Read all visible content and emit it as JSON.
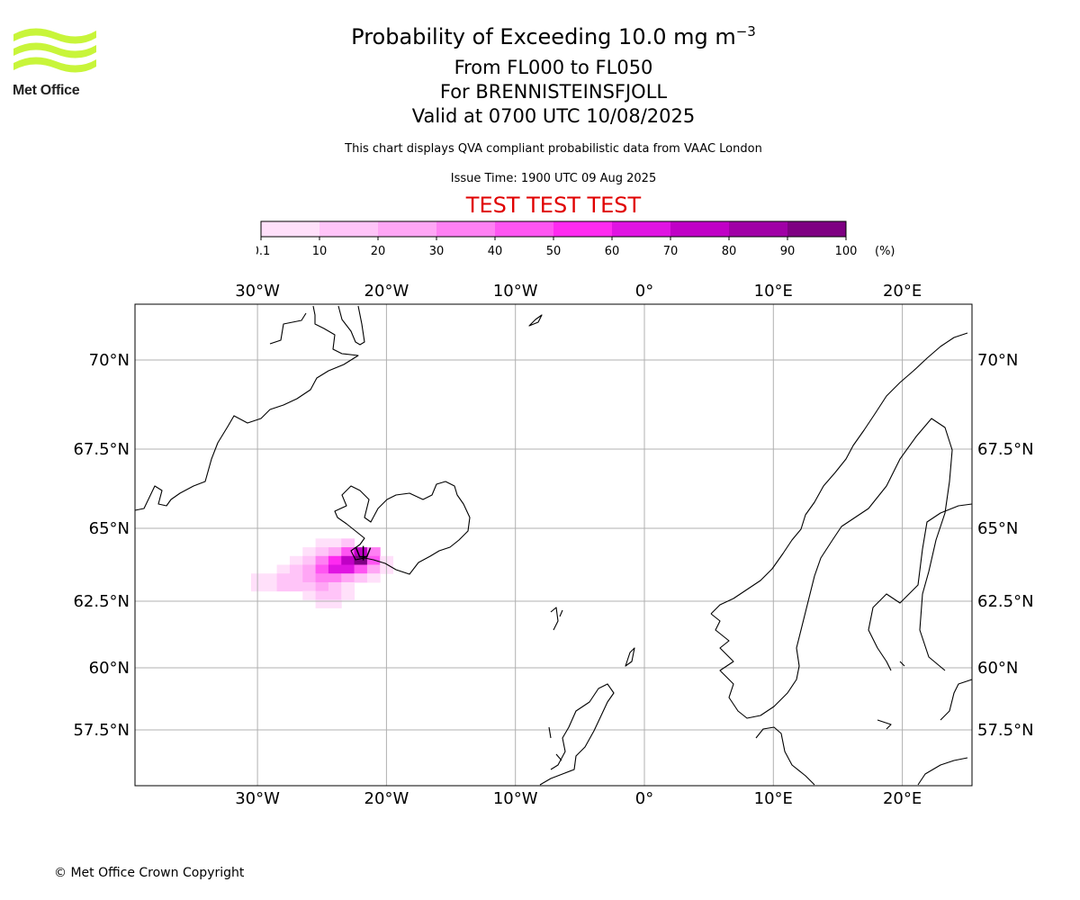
{
  "header": {
    "title_main": "Probability of Exceeding 10.0 mg m",
    "title_exponent": "−3",
    "levels": "From FL000 to FL050",
    "volcano": "For BRENNISTEINSFJOLL",
    "valid": "Valid at 0700 UTC 10/08/2025",
    "source_note": "This chart displays QVA compliant probabilistic data from VAAC London",
    "issue_time": "Issue Time: 1900 UTC 09 Aug 2025",
    "test_banner": "TEST TEST TEST"
  },
  "logo": {
    "text": "Met Office",
    "color": "#c8f53a"
  },
  "colorbar": {
    "unit": "(%)",
    "ticks": [
      "0.1",
      "10",
      "20",
      "30",
      "40",
      "50",
      "60",
      "70",
      "80",
      "90",
      "100"
    ],
    "colors": [
      "#ffe0fa",
      "#ffc4f8",
      "#ffa6f5",
      "#ff80f3",
      "#ff55f2",
      "#ff2af0",
      "#e014e2",
      "#c000c6",
      "#a000a6",
      "#7e0082"
    ]
  },
  "map": {
    "lon_labels": [
      "30°W",
      "20°W",
      "10°W",
      "0°",
      "10°E",
      "20°E"
    ],
    "lon_values": [
      -30,
      -20,
      -10,
      0,
      10,
      20
    ],
    "lat_labels": [
      "70°N",
      "67.5°N",
      "65°N",
      "62.5°N",
      "60°N",
      "57.5°N"
    ],
    "lat_values": [
      70,
      67.5,
      65,
      62.5,
      60,
      57.5
    ],
    "extent": {
      "lon_min": -39.6,
      "lon_max": 25.4,
      "lat_min": 55.6,
      "lat_max": 72.2
    },
    "volcano_location": {
      "lon": -21.8,
      "lat": 63.9
    },
    "probability_cells": [
      {
        "lon": -25,
        "lat": 64.5,
        "p": 5
      },
      {
        "lon": -24,
        "lat": 64.5,
        "p": 8
      },
      {
        "lon": -23,
        "lat": 64.5,
        "p": 12
      },
      {
        "lon": -26,
        "lat": 64.2,
        "p": 6
      },
      {
        "lon": -25,
        "lat": 64.2,
        "p": 15
      },
      {
        "lon": -24,
        "lat": 64.2,
        "p": 25
      },
      {
        "lon": -23,
        "lat": 64.2,
        "p": 45
      },
      {
        "lon": -22,
        "lat": 64.2,
        "p": 75
      },
      {
        "lon": -21,
        "lat": 64.2,
        "p": 35
      },
      {
        "lon": -27,
        "lat": 63.9,
        "p": 5
      },
      {
        "lon": -26,
        "lat": 63.9,
        "p": 18
      },
      {
        "lon": -25,
        "lat": 63.9,
        "p": 35
      },
      {
        "lon": -24,
        "lat": 63.9,
        "p": 55
      },
      {
        "lon": -23,
        "lat": 63.9,
        "p": 75
      },
      {
        "lon": -22,
        "lat": 63.9,
        "p": 95
      },
      {
        "lon": -21,
        "lat": 63.9,
        "p": 40
      },
      {
        "lon": -20,
        "lat": 63.9,
        "p": 8
      },
      {
        "lon": -28,
        "lat": 63.6,
        "p": 8
      },
      {
        "lon": -27,
        "lat": 63.6,
        "p": 12
      },
      {
        "lon": -26,
        "lat": 63.6,
        "p": 22
      },
      {
        "lon": -25,
        "lat": 63.6,
        "p": 45
      },
      {
        "lon": -24,
        "lat": 63.6,
        "p": 65
      },
      {
        "lon": -23,
        "lat": 63.6,
        "p": 60
      },
      {
        "lon": -22,
        "lat": 63.6,
        "p": 48
      },
      {
        "lon": -21,
        "lat": 63.6,
        "p": 20
      },
      {
        "lon": -20,
        "lat": 63.6,
        "p": 6
      },
      {
        "lon": -30,
        "lat": 63.3,
        "p": 4
      },
      {
        "lon": -29,
        "lat": 63.3,
        "p": 8
      },
      {
        "lon": -28,
        "lat": 63.3,
        "p": 15
      },
      {
        "lon": -27,
        "lat": 63.3,
        "p": 18
      },
      {
        "lon": -26,
        "lat": 63.3,
        "p": 25
      },
      {
        "lon": -25,
        "lat": 63.3,
        "p": 30
      },
      {
        "lon": -24,
        "lat": 63.3,
        "p": 32
      },
      {
        "lon": -23,
        "lat": 63.3,
        "p": 20
      },
      {
        "lon": -22,
        "lat": 63.3,
        "p": 10
      },
      {
        "lon": -21,
        "lat": 63.3,
        "p": 5
      },
      {
        "lon": -30,
        "lat": 63.0,
        "p": 4
      },
      {
        "lon": -29,
        "lat": 63.0,
        "p": 6
      },
      {
        "lon": -28,
        "lat": 63.0,
        "p": 10
      },
      {
        "lon": -27,
        "lat": 63.0,
        "p": 12
      },
      {
        "lon": -26,
        "lat": 63.0,
        "p": 18
      },
      {
        "lon": -25,
        "lat": 63.0,
        "p": 22
      },
      {
        "lon": -24,
        "lat": 63.0,
        "p": 18
      },
      {
        "lon": -23,
        "lat": 63.0,
        "p": 8
      },
      {
        "lon": -26,
        "lat": 62.7,
        "p": 5
      },
      {
        "lon": -25,
        "lat": 62.7,
        "p": 12
      },
      {
        "lon": -24,
        "lat": 62.7,
        "p": 10
      },
      {
        "lon": -23,
        "lat": 62.7,
        "p": 5
      },
      {
        "lon": -25,
        "lat": 62.4,
        "p": 4
      },
      {
        "lon": -24,
        "lat": 62.4,
        "p": 6
      }
    ]
  },
  "footer": {
    "copyright": "© Met Office Crown Copyright"
  }
}
